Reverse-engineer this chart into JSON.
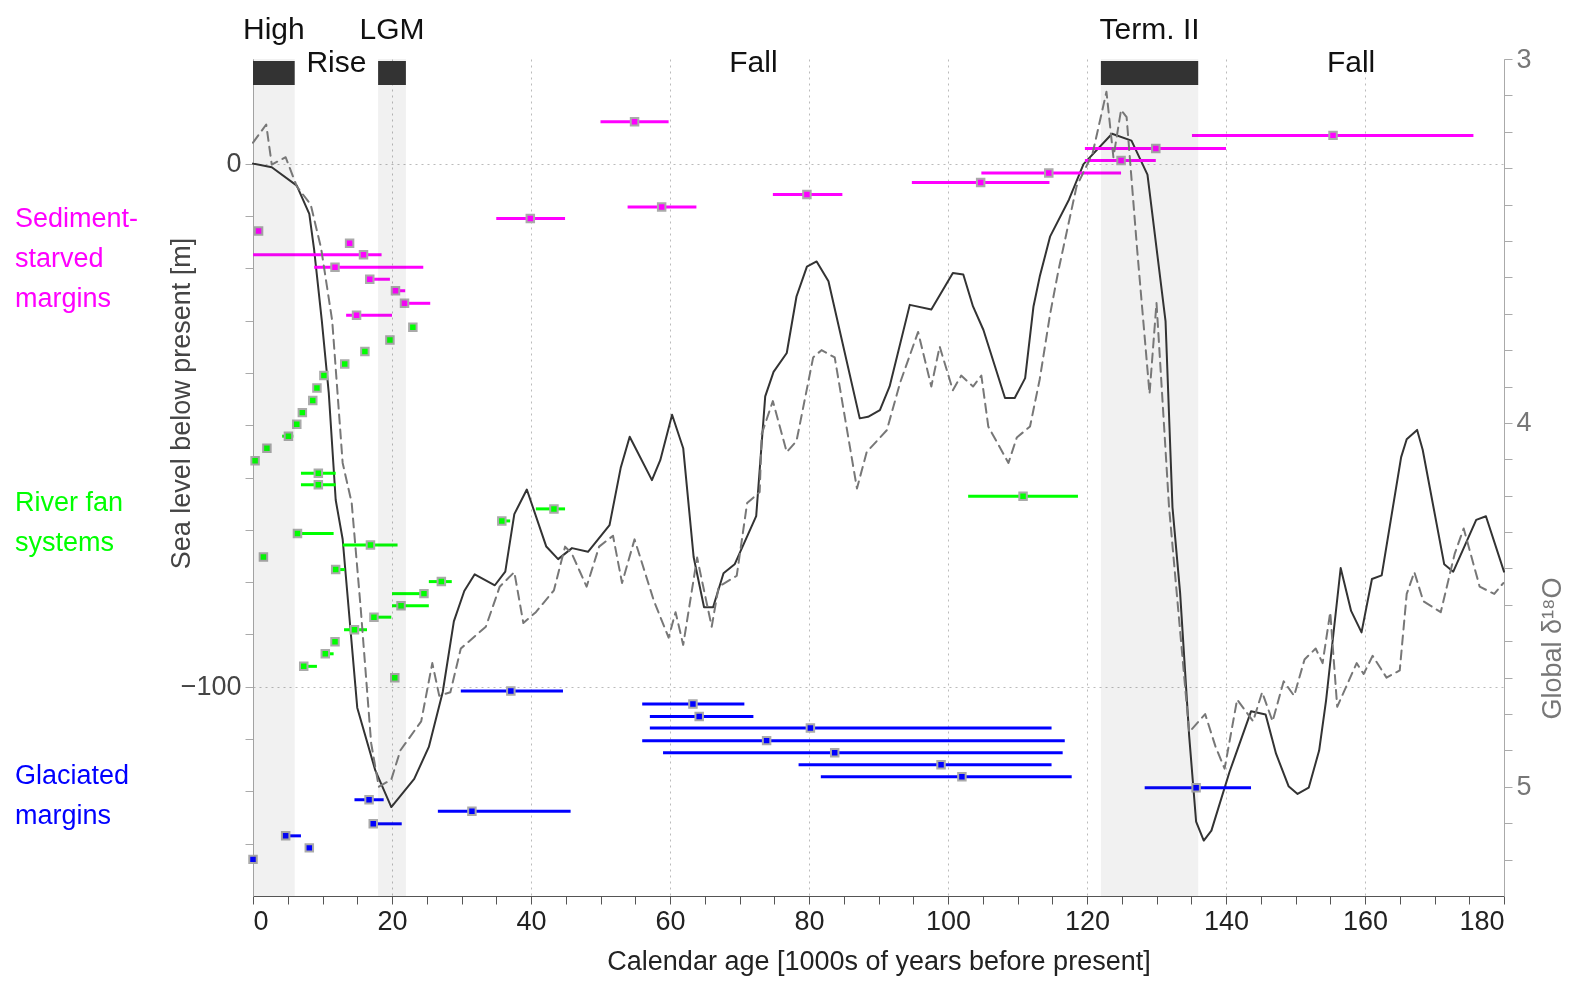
{
  "chart_data": {
    "type": "line",
    "xlabel": "Calendar age [1000s of years before present]",
    "ylabel": "Sea level below present [m]",
    "y2label": "Global δ¹⁸O",
    "xlim": [
      0,
      180
    ],
    "xticks": [
      0,
      {
        "value": 5,
        "label": null
      },
      {
        "value": 10,
        "label": null
      },
      {
        "value": 15,
        "label": null
      },
      20,
      {
        "value": 25,
        "label": null
      },
      {
        "value": 30,
        "label": null
      },
      {
        "value": 35,
        "label": null
      },
      40,
      {
        "value": 45,
        "label": null
      },
      {
        "value": 50,
        "label": null
      },
      {
        "value": 55,
        "label": null
      },
      60,
      {
        "value": 65,
        "label": null
      },
      {
        "value": 70,
        "label": null
      },
      {
        "value": 75,
        "label": null
      },
      80,
      {
        "value": 85,
        "label": null
      },
      {
        "value": 90,
        "label": null
      },
      {
        "value": 95,
        "label": null
      },
      100,
      {
        "value": 105,
        "label": null
      },
      {
        "value": 110,
        "label": null
      },
      {
        "value": 115,
        "label": null
      },
      120,
      {
        "value": 125,
        "label": null
      },
      {
        "value": 130,
        "label": null
      },
      {
        "value": 135,
        "label": null
      },
      140,
      {
        "value": 145,
        "label": null
      },
      {
        "value": 150,
        "label": null
      },
      {
        "value": 155,
        "label": null
      },
      160,
      {
        "value": 165,
        "label": null
      },
      {
        "value": 170,
        "label": null
      },
      {
        "value": 175,
        "label": null
      },
      180
    ],
    "ylim": [
      -140,
      20
    ],
    "yticks": [
      {
        "value": -130,
        "label": null
      },
      {
        "value": -120,
        "label": null
      },
      {
        "value": -110,
        "label": null
      },
      {
        "value": -100,
        "label": "−100"
      },
      {
        "value": -90,
        "label": null
      },
      {
        "value": -80,
        "label": null
      },
      {
        "value": -70,
        "label": null
      },
      {
        "value": -60,
        "label": null
      },
      {
        "value": -50,
        "label": null
      },
      {
        "value": -40,
        "label": null
      },
      {
        "value": -30,
        "label": null
      },
      {
        "value": -20,
        "label": null
      },
      {
        "value": -10,
        "label": null
      },
      0
    ],
    "y2lim": [
      5.3,
      3
    ],
    "y2ticks": [
      3,
      {
        "value": 3.1,
        "label": null
      },
      {
        "value": 3.2,
        "label": null
      },
      {
        "value": 3.3,
        "label": null
      },
      {
        "value": 3.4,
        "label": null
      },
      {
        "value": 3.5,
        "label": null
      },
      {
        "value": 3.6,
        "label": null
      },
      {
        "value": 3.7,
        "label": null
      },
      {
        "value": 3.8,
        "label": null
      },
      {
        "value": 3.9,
        "label": null
      },
      4,
      {
        "value": 4.1,
        "label": null
      },
      {
        "value": 4.2,
        "label": null
      },
      {
        "value": 4.3,
        "label": null
      },
      {
        "value": 4.4,
        "label": null
      },
      {
        "value": 4.5,
        "label": null
      },
      {
        "value": 4.6,
        "label": null
      },
      {
        "value": 4.7,
        "label": null
      },
      {
        "value": 4.8,
        "label": null
      },
      {
        "value": 4.9,
        "label": null
      },
      5,
      {
        "value": 5.1,
        "label": null
      },
      {
        "value": 5.2,
        "label": null
      }
    ],
    "grid": true,
    "bands": [
      {
        "axis": "x",
        "from": 0,
        "to": 6,
        "label": "High",
        "color": "#333333"
      },
      {
        "axis": "x",
        "from": 18,
        "to": 22,
        "label": "LGM",
        "color": "#333333"
      },
      {
        "axis": "x",
        "from": 122,
        "to": 136,
        "label": "Term. II",
        "color": "#333333"
      }
    ],
    "annotations": [
      "Rise",
      "Fall",
      "Fall"
    ],
    "series": [
      {
        "type": "line",
        "color": "#333333",
        "line_style": "solid",
        "x": [
          0,
          2.7,
          6.3,
          8.1,
          8.8,
          9.9,
          10.9,
          11.9,
          12.9,
          15.0,
          17.6,
          19.9,
          23.2,
          25.3,
          27.3,
          28.9,
          30.4,
          31.9,
          34.8,
          36.3,
          37.6,
          39.4,
          42.2,
          43.9,
          45.9,
          48.2,
          51.3,
          52.9,
          54.2,
          57.4,
          58.6,
          60.3,
          61.9,
          63.4,
          64.9,
          66.2,
          67.7,
          69.3,
          72.4,
          73.7,
          74.9,
          76.8,
          78.2,
          79.7,
          81.1,
          82.8,
          87.3,
          88.5,
          90.2,
          91.6,
          94.5,
          97.6,
          100.7,
          102.2,
          103.6,
          105.1,
          108.2,
          109.6,
          111.1,
          112.3,
          113.2,
          114.7,
          117.4,
          119.5,
          123.6,
          126.4,
          128.7,
          131.3,
          132.3,
          133.4,
          134.7,
          135.7,
          136.8,
          137.9,
          140.5,
          143.6,
          145.7,
          147.2,
          149.0,
          150.3,
          151.9,
          153.4,
          154.4,
          156.5,
          158.0,
          159.5,
          161.0,
          162.4,
          165.2,
          166.0,
          167.5,
          168.3,
          171.4,
          172.7,
          176.0,
          177.4,
          180
        ],
        "values": [
          0,
          -0.7,
          -4.2,
          -9.6,
          -16.5,
          -30,
          -43.8,
          -64.3,
          -71.8,
          -104,
          -116,
          -123,
          -117.6,
          -111.5,
          -101,
          -87.5,
          -81.7,
          -78.5,
          -80.6,
          -78,
          -67,
          -62.3,
          -73.2,
          -75.6,
          -73.5,
          -74.2,
          -69.1,
          -58.2,
          -52.2,
          -60.5,
          -56.7,
          -48,
          -54.4,
          -75.2,
          -84.8,
          -84.8,
          -78.3,
          -76.6,
          -67.4,
          -44.5,
          -39.8,
          -36.2,
          -25.4,
          -19.7,
          -18.7,
          -22.5,
          -48.7,
          -48.4,
          -47.1,
          -42.6,
          -27,
          -27.9,
          -20.9,
          -21.2,
          -27.3,
          -31.8,
          -44.8,
          -44.8,
          -41,
          -27.3,
          -21.6,
          -13.9,
          -6.9,
          -0.1,
          5.7,
          4.4,
          -2.1,
          -30.1,
          -65.7,
          -82.1,
          -109.4,
          -125.8,
          -129.4,
          -127.5,
          -116.3,
          -104.7,
          -105.3,
          -112.8,
          -119,
          -120.5,
          -119.3,
          -112.2,
          -102.6,
          -77.3,
          -85.5,
          -89.6,
          -79.4,
          -78.7,
          -56.1,
          -52.7,
          -50.9,
          -54.7,
          -76.6,
          -78,
          -68.1,
          -67.4,
          -78
        ]
      },
      {
        "type": "line",
        "axis": "y2",
        "color": "#777777",
        "line_style": "dashed",
        "x": [
          0,
          1.9,
          2.7,
          4.7,
          6.3,
          8.3,
          9.8,
          11.4,
          12.9,
          14.2,
          15.5,
          17.0,
          18.1,
          19.9,
          21.2,
          24.2,
          25.8,
          26.8,
          28.4,
          29.9,
          33.5,
          35.5,
          37.6,
          38.9,
          40.7,
          43.3,
          44.9,
          45.9,
          48.0,
          49.8,
          51.8,
          53.1,
          54.9,
          57.7,
          59.8,
          60.8,
          61.9,
          63.9,
          66.0,
          67.0,
          69.6,
          71.1,
          72.9,
          73.2,
          74.8,
          76.8,
          78.2,
          80.6,
          81.8,
          83.7,
          86.9,
          88.3,
          91.2,
          93.1,
          95.7,
          97.6,
          98.8,
          100.7,
          101.9,
          103.6,
          104.8,
          105.8,
          108.7,
          109.9,
          111.8,
          113.2,
          114.7,
          115.9,
          118.5,
          120.8,
          122.8,
          123.8,
          124.9,
          125.7,
          127.2,
          129.0,
          130.0,
          131.8,
          134.7,
          137.0,
          138.5,
          139.8,
          141.6,
          143.9,
          145.2,
          146.7,
          148.3,
          149.8,
          151.3,
          152.9,
          153.9,
          155.0,
          156.0,
          158.8,
          159.8,
          161.1,
          163.1,
          165.0,
          166.0,
          167.1,
          168.4,
          170.9,
          172.9,
          174.2,
          176.5,
          178.6,
          179.9
        ],
        "values": [
          3.23,
          3.18,
          3.29,
          3.27,
          3.35,
          3.4,
          3.52,
          3.72,
          4.11,
          4.22,
          4.51,
          4.88,
          5.0,
          4.98,
          4.9,
          4.82,
          4.66,
          4.75,
          4.74,
          4.62,
          4.56,
          4.45,
          4.41,
          4.55,
          4.52,
          4.46,
          4.34,
          4.36,
          4.45,
          4.34,
          4.31,
          4.44,
          4.32,
          4.49,
          4.59,
          4.52,
          4.61,
          4.37,
          4.56,
          4.45,
          4.42,
          4.22,
          4.19,
          4.03,
          3.94,
          4.08,
          4.05,
          3.82,
          3.8,
          3.82,
          4.18,
          4.08,
          4.02,
          3.89,
          3.75,
          3.9,
          3.79,
          3.91,
          3.87,
          3.9,
          3.87,
          4.01,
          4.11,
          4.04,
          4.01,
          3.88,
          3.7,
          3.58,
          3.35,
          3.26,
          3.09,
          3.27,
          3.14,
          3.16,
          3.52,
          3.92,
          3.67,
          4.23,
          4.85,
          4.8,
          4.89,
          4.95,
          4.76,
          4.82,
          4.74,
          4.82,
          4.71,
          4.75,
          4.65,
          4.62,
          4.66,
          4.52,
          4.78,
          4.66,
          4.69,
          4.64,
          4.7,
          4.68,
          4.47,
          4.41,
          4.49,
          4.52,
          4.36,
          4.29,
          4.45,
          4.47,
          4.44
        ]
      },
      {
        "type": "scatter",
        "name": "Sediment-starved margins",
        "color": "#ff00ff",
        "marker": "square",
        "x": [
          0.8,
          15.9,
          11.8,
          13.9,
          16.8,
          20.5,
          21.8,
          14.9,
          54.9,
          39.9,
          58.8,
          79.7,
          104.7,
          114.5,
          129.9,
          124.9,
          155.4
        ],
        "values": [
          -12.9,
          -17.4,
          -19.8,
          -15.2,
          -22.1,
          -24.3,
          -26.7,
          -29.0,
          8.0,
          -10.5,
          -8.3,
          -5.9,
          -3.6,
          -1.8,
          2.9,
          0.6,
          5.4
        ],
        "xerrors": [
          null,
          [
            0,
            18.5
          ],
          [
            8.8,
            24.5
          ],
          null,
          [
            16.8,
            19.7
          ],
          [
            20.5,
            21.9
          ],
          [
            21.8,
            25.5
          ],
          [
            13.4,
            20.0
          ],
          [
            50.0,
            59.8
          ],
          [
            35.0,
            44.9
          ],
          [
            53.9,
            63.8
          ],
          [
            74.8,
            84.8
          ],
          [
            94.8,
            114.6
          ],
          [
            104.8,
            124.9
          ],
          [
            119.7,
            140.0
          ],
          [
            119.7,
            129.9
          ],
          [
            135.1,
            175.6
          ]
        ]
      },
      {
        "type": "scatter",
        "name": "River fan systems",
        "color": "#00ff00",
        "marker": "square",
        "x": [
          0.3,
          2.0,
          5.1,
          6.3,
          7.1,
          8.6,
          9.2,
          10.2,
          13.2,
          16.1,
          19.7,
          23.0,
          9.4,
          9.4,
          6.4,
          16.9,
          1.5,
          11.9,
          27.1,
          24.6,
          21.3,
          17.4,
          14.6,
          11.8,
          10.4,
          7.3,
          20.4,
          35.8,
          43.3,
          110.8
        ],
        "values": [
          -56.8,
          -54.4,
          -52.1,
          -49.8,
          -47.6,
          -45.3,
          -42.9,
          -40.5,
          -38.3,
          -35.9,
          -33.7,
          -31.3,
          -59.2,
          -61.4,
          -70.7,
          -72.9,
          -75.2,
          -77.6,
          -79.9,
          -82.2,
          -84.5,
          -86.7,
          -89.1,
          -91.4,
          -93.7,
          -96.1,
          -98.3,
          -68.3,
          -66.0,
          -63.6
        ],
        "xerrors": [
          null,
          null,
          [
            4.2,
            5.8
          ],
          null,
          null,
          null,
          null,
          null,
          null,
          null,
          null,
          null,
          [
            6.9,
            11.9
          ],
          [
            6.9,
            11.9
          ],
          [
            6.4,
            11.6
          ],
          [
            12.9,
            20.8
          ],
          null,
          [
            11.9,
            13.2
          ],
          [
            25.3,
            28.6
          ],
          [
            20.0,
            24.6
          ],
          [
            20.0,
            25.3
          ],
          [
            17.4,
            19.9
          ],
          [
            13.1,
            16.4
          ],
          null,
          [
            10.4,
            11.6
          ],
          [
            7.3,
            9.2
          ],
          null,
          [
            35.2,
            37.0
          ],
          [
            40.7,
            44.9
          ],
          [
            102.9,
            118.7
          ]
        ]
      },
      {
        "type": "scatter",
        "name": "Glaciated margins",
        "color": "#0000ff",
        "marker": "square",
        "x": [
          0,
          4.7,
          8.1,
          16.7,
          17.3,
          37.1,
          31.5,
          63.3,
          64.2,
          80.2,
          73.9,
          83.7,
          99.0,
          102.0,
          135.7
        ],
        "values": [
          -133.0,
          -128.5,
          -130.8,
          -121.6,
          -126.2,
          -100.8,
          -123.8,
          -103.3,
          -105.7,
          -107.9,
          -110.3,
          -112.6,
          -114.9,
          -117.2,
          -119.3
        ],
        "xerrors": [
          null,
          [
            4.7,
            6.9
          ],
          null,
          [
            14.6,
            18.8
          ],
          [
            17.3,
            21.4
          ],
          [
            29.9,
            44.6
          ],
          [
            26.6,
            45.7
          ],
          [
            56.0,
            70.7
          ],
          [
            57.1,
            72.0
          ],
          [
            57.1,
            114.9
          ],
          [
            56.0,
            116.8
          ],
          [
            59.0,
            116.5
          ],
          [
            78.5,
            114.9
          ],
          [
            81.7,
            117.8
          ],
          [
            128.3,
            143.6
          ]
        ]
      }
    ]
  }
}
